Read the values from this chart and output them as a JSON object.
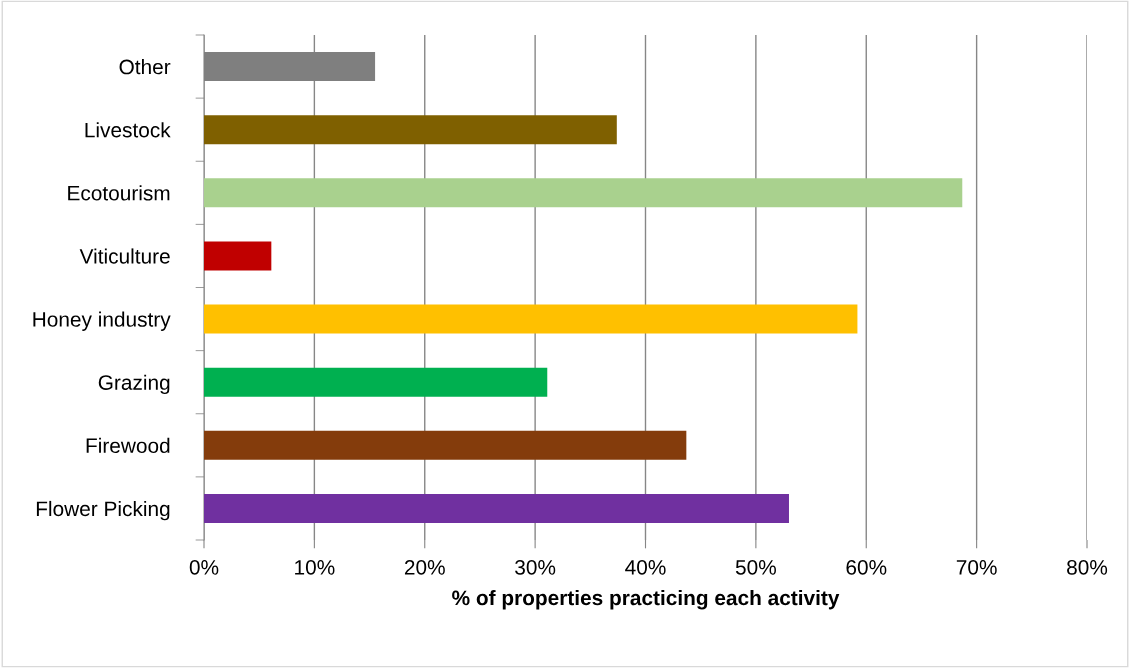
{
  "chart_data": {
    "type": "bar",
    "orientation": "horizontal",
    "xlabel": "% of properties practicing each activity",
    "categories": [
      "Other",
      "Livestock",
      "Ecotourism",
      "Viticulture",
      "Honey industry",
      "Grazing",
      "Firewood",
      "Flower Picking"
    ],
    "values": [
      15.5,
      37.4,
      68.7,
      6.1,
      59.2,
      31.1,
      43.7,
      53.0
    ],
    "colors": [
      "#7f7f7f",
      "#7f6000",
      "#a9d18e",
      "#c00000",
      "#ffc000",
      "#00b050",
      "#843c0c",
      "#7030a0"
    ],
    "xlim": [
      0,
      80
    ],
    "xticks": [
      {
        "value": 0,
        "label": "0%"
      },
      {
        "value": 10,
        "label": "10%"
      },
      {
        "value": 20,
        "label": "20%"
      },
      {
        "value": 30,
        "label": "30%"
      },
      {
        "value": 40,
        "label": "40%"
      },
      {
        "value": 50,
        "label": "50%"
      },
      {
        "value": 60,
        "label": "60%"
      },
      {
        "value": 70,
        "label": "70%"
      },
      {
        "value": 80,
        "label": "80%"
      }
    ],
    "grid": "x"
  }
}
